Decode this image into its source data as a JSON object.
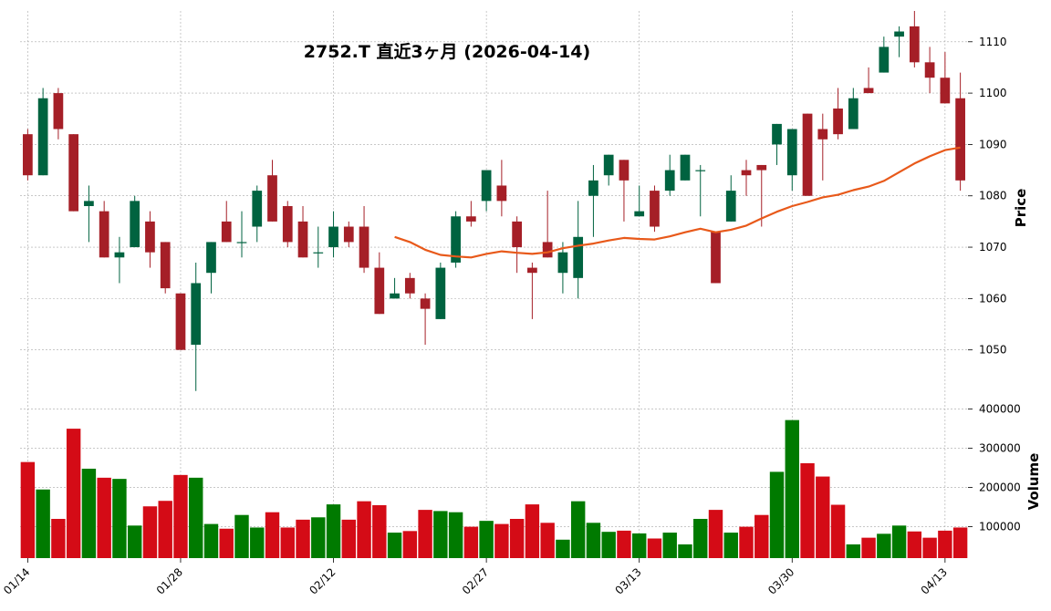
{
  "chart_data": {
    "type": "candlestick",
    "title": "2752.T  直近3ヶ月  (2026-04-14)",
    "price_ylabel": "Price",
    "volume_ylabel": "Volume",
    "price_ylim": [
      1040,
      1116
    ],
    "volume_ylim": [
      20000,
      420000
    ],
    "price_ticks": [
      "1050",
      "1060",
      "1070",
      "1080",
      "1090",
      "1100",
      "1110"
    ],
    "price_tick_values": [
      1050,
      1060,
      1070,
      1080,
      1090,
      1100,
      1110
    ],
    "volume_ticks": [
      "100000",
      "200000",
      "300000",
      "400000"
    ],
    "volume_tick_values": [
      100000,
      200000,
      300000,
      400000
    ],
    "x_tick_labels": [
      {
        "index": 0,
        "label": "01/14"
      },
      {
        "index": 10,
        "label": "01/28"
      },
      {
        "index": 20,
        "label": "02/12"
      },
      {
        "index": 30,
        "label": "02/27"
      },
      {
        "index": 40,
        "label": "03/13"
      },
      {
        "index": 50,
        "label": "03/30"
      },
      {
        "index": 60,
        "label": "04/13"
      }
    ],
    "grid": true,
    "colors": {
      "up": "#006340",
      "down": "#a51f27",
      "vol_up": "#007a00",
      "vol_down": "#d40b16",
      "ma": "#e8591a"
    },
    "ohlc": [
      [
        1092,
        1093,
        1083,
        1084
      ],
      [
        1084,
        1101,
        1084,
        1099
      ],
      [
        1100,
        1101,
        1091,
        1093
      ],
      [
        1092,
        1092,
        1077,
        1077
      ],
      [
        1078,
        1082,
        1071,
        1079
      ],
      [
        1077,
        1079,
        1068,
        1068
      ],
      [
        1068,
        1072,
        1063,
        1069
      ],
      [
        1070,
        1080,
        1070,
        1079
      ],
      [
        1075,
        1077,
        1066,
        1069
      ],
      [
        1071,
        1071,
        1061,
        1062
      ],
      [
        1061,
        1061,
        1050,
        1050
      ],
      [
        1051,
        1067,
        1042,
        1063
      ],
      [
        1065,
        1071,
        1061,
        1071
      ],
      [
        1075,
        1079,
        1071,
        1071
      ],
      [
        1071,
        1077,
        1068,
        1071
      ],
      [
        1074,
        1082,
        1071,
        1081
      ],
      [
        1084,
        1087,
        1075,
        1075
      ],
      [
        1078,
        1079,
        1070,
        1071
      ],
      [
        1075,
        1078,
        1068,
        1068
      ],
      [
        1069,
        1074,
        1066,
        1069
      ],
      [
        1070,
        1077,
        1068,
        1074
      ],
      [
        1074,
        1075,
        1070,
        1071
      ],
      [
        1074,
        1078,
        1065,
        1066
      ],
      [
        1066,
        1069,
        1057,
        1057
      ],
      [
        1060,
        1064,
        1060,
        1061
      ],
      [
        1064,
        1065,
        1060,
        1061
      ],
      [
        1060,
        1061,
        1051,
        1058
      ],
      [
        1056,
        1067,
        1056,
        1066
      ],
      [
        1067,
        1077,
        1066,
        1076
      ],
      [
        1076,
        1079,
        1074,
        1075
      ],
      [
        1079,
        1085,
        1077,
        1085
      ],
      [
        1082,
        1087,
        1076,
        1079
      ],
      [
        1075,
        1076,
        1065,
        1070
      ],
      [
        1066,
        1067,
        1056,
        1065
      ],
      [
        1071,
        1081,
        1068,
        1068
      ],
      [
        1065,
        1071,
        1061,
        1069
      ],
      [
        1064,
        1079,
        1060,
        1072
      ],
      [
        1080,
        1086,
        1072,
        1083
      ],
      [
        1084,
        1088,
        1082,
        1088
      ],
      [
        1087,
        1087,
        1075,
        1083
      ],
      [
        1076,
        1082,
        1076,
        1077
      ],
      [
        1081,
        1082,
        1073,
        1074
      ],
      [
        1081,
        1088,
        1080,
        1085
      ],
      [
        1083,
        1088,
        1083,
        1088
      ],
      [
        1085,
        1086,
        1076,
        1085
      ],
      [
        1073,
        1073,
        1063,
        1063
      ],
      [
        1075,
        1084,
        1075,
        1081
      ],
      [
        1085,
        1087,
        1080,
        1084
      ],
      [
        1086,
        1086,
        1074,
        1085
      ],
      [
        1090,
        1094,
        1086,
        1094
      ],
      [
        1084,
        1093,
        1081,
        1093
      ],
      [
        1096,
        1096,
        1080,
        1080
      ],
      [
        1093,
        1096,
        1083,
        1091
      ],
      [
        1097,
        1101,
        1091,
        1092
      ],
      [
        1093,
        1101,
        1093,
        1099
      ],
      [
        1101,
        1105,
        1100,
        1100
      ],
      [
        1104,
        1111,
        1104,
        1109
      ],
      [
        1111,
        1113,
        1107,
        1112
      ],
      [
        1113,
        1116,
        1105,
        1106
      ],
      [
        1106,
        1109,
        1100,
        1103
      ],
      [
        1103,
        1108,
        1098,
        1098
      ],
      [
        1099,
        1104,
        1081,
        1083
      ]
    ],
    "volume": [
      265000,
      195000,
      120000,
      350000,
      248000,
      225000,
      222000,
      103000,
      152000,
      166000,
      232000,
      225000,
      107000,
      95000,
      130000,
      98000,
      137000,
      98000,
      118000,
      124000,
      157000,
      118000,
      165000,
      155000,
      85000,
      89000,
      143000,
      140000,
      137000,
      100000,
      115000,
      107000,
      120000,
      157000,
      110000,
      67000,
      165000,
      110000,
      87000,
      90000,
      83000,
      70000,
      85000,
      55000,
      120000,
      143000,
      85000,
      100000,
      130000,
      240000,
      372000,
      262000,
      228000,
      156000,
      55000,
      72000,
      82000,
      103000,
      88000,
      72000,
      90000,
      98000
    ],
    "ma_start": 24,
    "ma": [
      1072,
      1071,
      1069.5,
      1068.5,
      1068.2,
      1068,
      1068.7,
      1069.2,
      1068.9,
      1068.7,
      1069,
      1069.8,
      1070.3,
      1070.7,
      1071.3,
      1071.8,
      1071.6,
      1071.5,
      1072.1,
      1072.9,
      1073.6,
      1072.9,
      1073.4,
      1074.2,
      1075.6,
      1076.9,
      1078,
      1078.8,
      1079.7,
      1080.2,
      1081.1,
      1081.8,
      1082.9,
      1084.6,
      1086.3,
      1087.7,
      1088.9,
      1089.4
    ]
  }
}
